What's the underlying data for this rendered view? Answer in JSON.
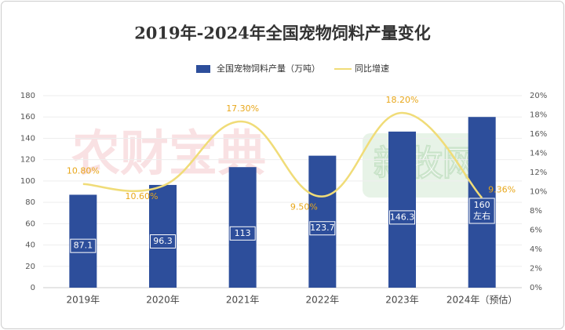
{
  "chart_data": {
    "type": "bar",
    "title": "2019年-2024年全国宠物饲料产量变化",
    "categories": [
      "2019年",
      "2020年",
      "2021年",
      "2022年",
      "2023年",
      "2024年（预估）"
    ],
    "series": [
      {
        "name": "全国宠物饲料产量（万吨）",
        "type": "bar",
        "color": "#2d4e9b",
        "values": [
          87.1,
          96.3,
          113,
          123.7,
          146.3,
          160
        ],
        "value_labels": [
          "87.1",
          "96.3",
          "113",
          "123.7",
          "146.3",
          "160\n左右"
        ]
      },
      {
        "name": "同比增速",
        "type": "line",
        "axis": "y2",
        "color": "#f0dc78",
        "values": [
          10.8,
          10.6,
          17.3,
          9.5,
          18.2,
          9.36
        ],
        "value_labels": [
          "10.80%",
          "10.60%",
          "17.30%",
          "9.50%",
          "18.20%",
          "9.36%"
        ]
      }
    ],
    "ylim": [
      0,
      180
    ],
    "yticks": [
      0,
      20,
      40,
      60,
      80,
      100,
      120,
      140,
      160,
      180
    ],
    "y2lim": [
      0,
      20
    ],
    "y2ticks": [
      {
        "value": 0,
        "label": "0%"
      },
      {
        "value": 2,
        "label": "2%"
      },
      {
        "value": 4,
        "label": "4%"
      },
      {
        "value": 6,
        "label": "6%"
      },
      {
        "value": 8,
        "label": "8%"
      },
      {
        "value": 10,
        "label": "10%"
      },
      {
        "value": 12,
        "label": "12%"
      },
      {
        "value": 14,
        "label": "14%"
      },
      {
        "value": 16,
        "label": "16%"
      },
      {
        "value": 18,
        "label": "18%"
      },
      {
        "value": 20,
        "label": "20%"
      }
    ],
    "grid": true,
    "legend": "top",
    "watermarks": [
      "农财宝典",
      "新牧网"
    ]
  }
}
